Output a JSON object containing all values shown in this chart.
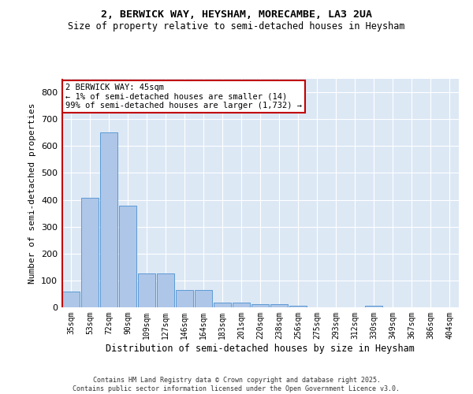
{
  "title1": "2, BERWICK WAY, HEYSHAM, MORECAMBE, LA3 2UA",
  "title2": "Size of property relative to semi-detached houses in Heysham",
  "xlabel": "Distribution of semi-detached houses by size in Heysham",
  "ylabel": "Number of semi-detached properties",
  "categories": [
    "35sqm",
    "53sqm",
    "72sqm",
    "90sqm",
    "109sqm",
    "127sqm",
    "146sqm",
    "164sqm",
    "183sqm",
    "201sqm",
    "220sqm",
    "238sqm",
    "256sqm",
    "275sqm",
    "293sqm",
    "312sqm",
    "330sqm",
    "349sqm",
    "367sqm",
    "386sqm",
    "404sqm"
  ],
  "values": [
    60,
    408,
    650,
    378,
    125,
    125,
    65,
    65,
    18,
    18,
    12,
    12,
    5,
    0,
    0,
    0,
    5,
    0,
    0,
    0,
    0
  ],
  "highlight_index": 0,
  "highlight_color": "#c00000",
  "bar_color": "#aec6e8",
  "bar_edge_color": "#5b9bd5",
  "background_color": "#dde8f5",
  "annotation_text": "2 BERWICK WAY: 45sqm\n← 1% of semi-detached houses are smaller (14)\n99% of semi-detached houses are larger (1,732) →",
  "footer": "Contains HM Land Registry data © Crown copyright and database right 2025.\nContains public sector information licensed under the Open Government Licence v3.0.",
  "ylim": [
    0,
    850
  ],
  "yticks": [
    0,
    100,
    200,
    300,
    400,
    500,
    600,
    700,
    800
  ]
}
